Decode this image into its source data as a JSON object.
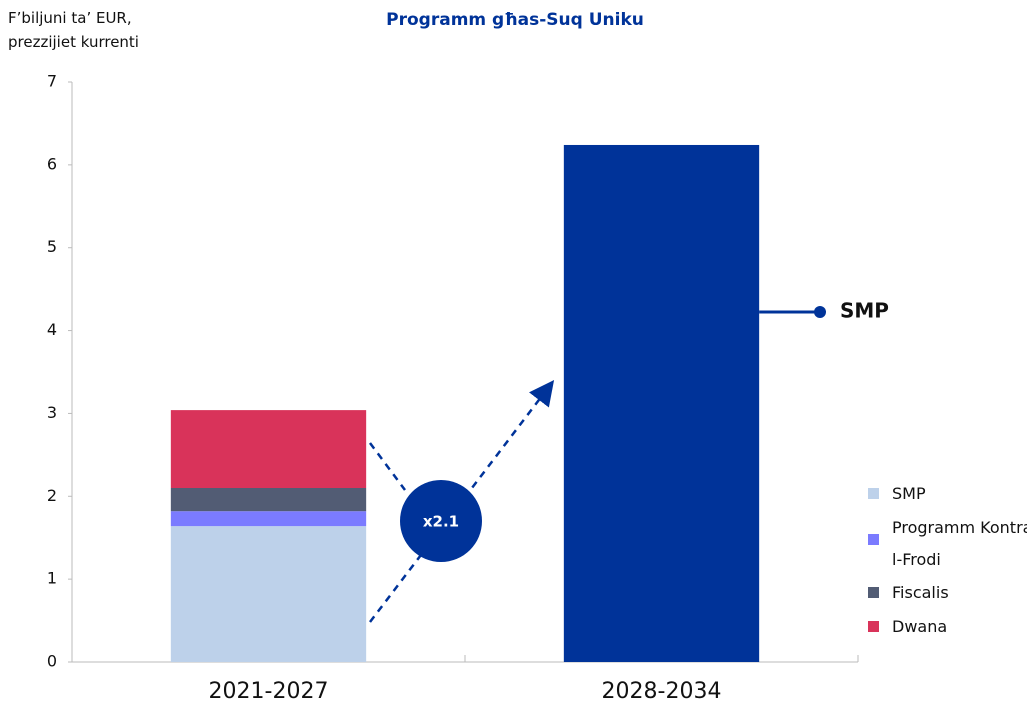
{
  "chart_data": {
    "type": "stacked_bar",
    "title": "Programm għas-Suq Uniku",
    "y_label": "F’biljuni ta’ EUR, prezzijiet kurrenti",
    "categories": [
      "2021-2027",
      "2028-2034"
    ],
    "series": [
      {
        "name": "SMP",
        "color": "#bdd1ea",
        "colors": [
          "#bdd1ea",
          "#003399"
        ],
        "values": [
          1.64,
          6.24
        ]
      },
      {
        "name": "Programm Kontra l-Frodi",
        "color": "#7b7bff",
        "values": [
          0.18,
          null
        ]
      },
      {
        "name": "Fiscalis",
        "color": "#525c74",
        "values": [
          0.28,
          null
        ]
      },
      {
        "name": "Dwana",
        "color": "#d9335a",
        "values": [
          0.94,
          null
        ]
      }
    ],
    "ylim": [
      0,
      7
    ],
    "yticks": [
      0,
      1,
      2,
      3,
      4,
      5,
      6,
      7
    ],
    "annotations": [
      "x2.1",
      "SMP"
    ],
    "legend": "right"
  }
}
